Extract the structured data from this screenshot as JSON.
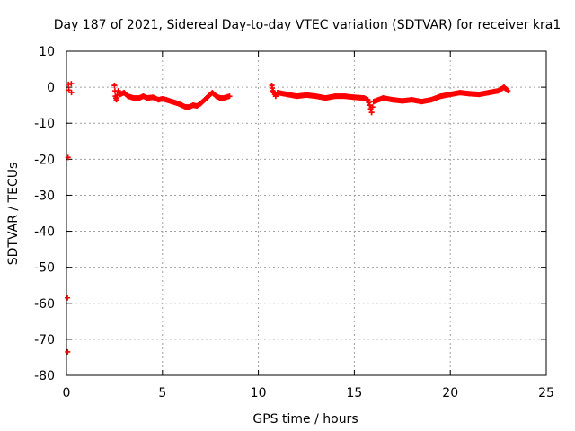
{
  "chart_data": {
    "type": "scatter",
    "title": "Day 187 of 2021, Sidereal Day-to-day VTEC variation (SDTVAR) for receiver kra1",
    "xlabel": "GPS time / hours",
    "ylabel": "SDTVAR / TECUs",
    "xlim": [
      0,
      25
    ],
    "ylim": [
      -80,
      10
    ],
    "xticks": [
      0,
      5,
      10,
      15,
      20,
      25
    ],
    "yticks": [
      10,
      0,
      -10,
      -20,
      -30,
      -40,
      -50,
      -60,
      -70,
      -80
    ],
    "grid": true,
    "marker": "plus",
    "color": "#ff0000",
    "series": [
      {
        "name": "kra1",
        "x": [
          0.1,
          0.12,
          0.25,
          0.26,
          0.08,
          0.05,
          0.06,
          2.5,
          2.55,
          2.6,
          2.7,
          2.8,
          3.0,
          3.2,
          3.5,
          3.8,
          4.0,
          4.2,
          4.5,
          4.8,
          5.0,
          5.2,
          5.5,
          5.8,
          6.0,
          6.2,
          6.4,
          6.6,
          6.8,
          7.0,
          7.2,
          7.4,
          7.6,
          7.8,
          8.0,
          8.2,
          8.5,
          10.7,
          10.75,
          10.8,
          10.9,
          11.0,
          11.5,
          12.0,
          12.5,
          13.0,
          13.5,
          14.0,
          14.5,
          15.0,
          15.5,
          15.7,
          15.8,
          15.9,
          16.0,
          16.5,
          17.0,
          17.5,
          18.0,
          18.5,
          19.0,
          19.5,
          20.0,
          20.5,
          21.0,
          21.5,
          22.0,
          22.5,
          22.8,
          23.0
        ],
        "y": [
          0.8,
          -0.8,
          1.0,
          -1.5,
          -19.5,
          -58.5,
          -73.5,
          0.5,
          -2.5,
          -3.5,
          -1.0,
          -2.0,
          -1.5,
          -2.5,
          -3.0,
          -3.0,
          -2.5,
          -3.0,
          -2.8,
          -3.5,
          -3.2,
          -3.5,
          -4.0,
          -4.5,
          -5.0,
          -5.5,
          -5.5,
          -5.0,
          -5.2,
          -4.5,
          -3.5,
          -2.5,
          -1.5,
          -2.5,
          -3.0,
          -3.0,
          -2.5,
          0.5,
          -1.0,
          -1.5,
          -2.5,
          -1.5,
          -2.0,
          -2.5,
          -2.2,
          -2.5,
          -3.0,
          -2.5,
          -2.5,
          -2.8,
          -3.0,
          -3.5,
          -5.0,
          -7.0,
          -4.0,
          -3.0,
          -3.5,
          -3.8,
          -3.5,
          -4.0,
          -3.5,
          -2.5,
          -2.0,
          -1.5,
          -1.8,
          -2.0,
          -1.5,
          -1.0,
          0.0,
          -1.0
        ]
      }
    ]
  }
}
